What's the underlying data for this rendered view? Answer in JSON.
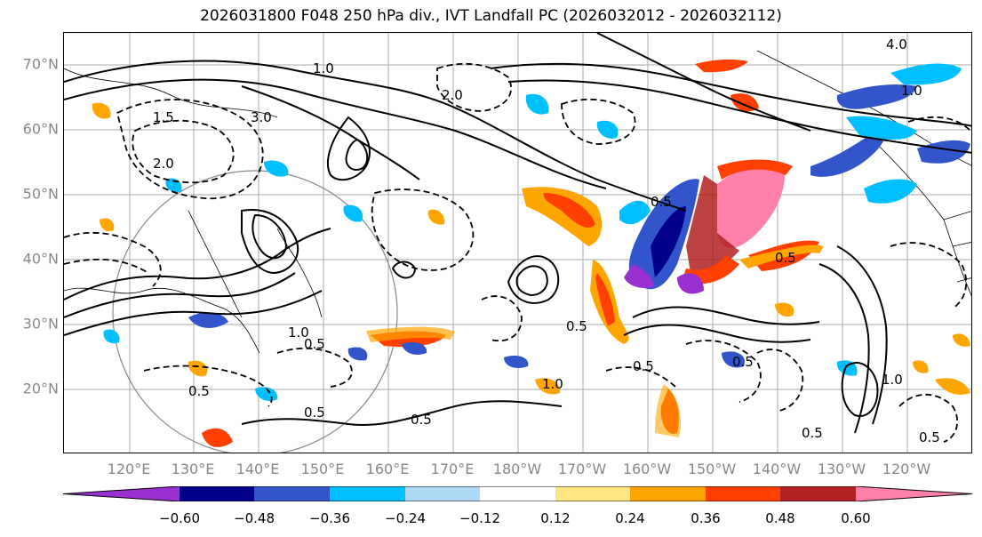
{
  "title": "2026031800 F048 250 hPa div., IVT Landfall PC (2026032012 - 2026032112)",
  "lat_labels": [
    "70°N",
    "60°N",
    "50°N",
    "40°N",
    "30°N",
    "20°N"
  ],
  "lon_labels": [
    "120°E",
    "130°E",
    "140°E",
    "150°E",
    "160°E",
    "170°E",
    "180°W",
    "170°W",
    "160°W",
    "150°W",
    "140°W",
    "130°W",
    "120°W"
  ],
  "colorbar": {
    "ticks": [
      "−0.60",
      "−0.48",
      "−0.36",
      "−0.24",
      "−0.12",
      "0.12",
      "0.24",
      "0.36",
      "0.48",
      "0.60"
    ],
    "colors": [
      "#9b30d0",
      "#00008b",
      "#3355cc",
      "#00bfff",
      "#add8f6",
      "#ffffff",
      "#ffe680",
      "#ffa500",
      "#ff4000",
      "#b22222",
      "#ff80a8"
    ]
  },
  "contour_labels": [
    "1.5",
    "2.0",
    "1.0",
    "3.0",
    "2.0",
    "0.5",
    "0.5",
    "1.0",
    "0.5",
    "0.5",
    "0.5",
    "1.0",
    "0.5",
    "0.5",
    "0.5",
    "4.0",
    "1.0",
    "0.5",
    "1.0",
    "0.5",
    "0.5"
  ]
}
